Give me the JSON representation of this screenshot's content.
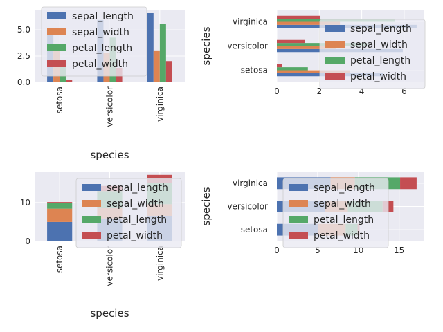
{
  "legend_labels": [
    "sepal_length",
    "sepal_width",
    "petal_length",
    "petal_width"
  ],
  "colors": {
    "series": [
      "#4c72b0",
      "#dd8452",
      "#55a868",
      "#c44e52"
    ],
    "axes_bg": "#eaeaf2",
    "grid": "#ffffff"
  },
  "chart_data": [
    {
      "type": "bar",
      "orientation": "vertical",
      "categories": [
        "setosa",
        "versicolor",
        "virginica"
      ],
      "series": [
        {
          "name": "sepal_length",
          "values": [
            5.006,
            5.936,
            6.588
          ]
        },
        {
          "name": "sepal_width",
          "values": [
            3.428,
            2.77,
            2.974
          ]
        },
        {
          "name": "petal_length",
          "values": [
            1.462,
            4.26,
            5.552
          ]
        },
        {
          "name": "petal_width",
          "values": [
            0.246,
            1.326,
            2.026
          ]
        }
      ],
      "xlabel": "species",
      "ylabel": "",
      "ylim": [
        0,
        6.917
      ],
      "yticks": [
        "0.0",
        "2.5",
        "5.0"
      ],
      "grid": true,
      "legend": "top-left"
    },
    {
      "type": "bar",
      "orientation": "horizontal",
      "categories": [
        "setosa",
        "versicolor",
        "virginica"
      ],
      "series": [
        {
          "name": "sepal_length",
          "values": [
            5.006,
            5.936,
            6.588
          ]
        },
        {
          "name": "sepal_width",
          "values": [
            3.428,
            2.77,
            2.974
          ]
        },
        {
          "name": "petal_length",
          "values": [
            1.462,
            4.26,
            5.552
          ]
        },
        {
          "name": "petal_width",
          "values": [
            0.246,
            1.326,
            2.026
          ]
        }
      ],
      "xlabel": "",
      "ylabel": "species",
      "xlim": [
        0,
        6.917
      ],
      "xticks": [
        "0",
        "2",
        "4",
        "6"
      ],
      "grid": true,
      "legend": "center-right"
    },
    {
      "type": "bar",
      "orientation": "vertical",
      "stacked": true,
      "categories": [
        "setosa",
        "versicolor",
        "virginica"
      ],
      "series": [
        {
          "name": "sepal_length",
          "values": [
            5.006,
            5.936,
            6.588
          ]
        },
        {
          "name": "sepal_width",
          "values": [
            3.428,
            2.77,
            2.974
          ]
        },
        {
          "name": "petal_length",
          "values": [
            1.462,
            4.26,
            5.552
          ]
        },
        {
          "name": "petal_width",
          "values": [
            0.246,
            1.326,
            2.026
          ]
        }
      ],
      "xlabel": "species",
      "ylabel": "",
      "ylim": [
        0,
        17.997
      ],
      "yticks": [
        "0",
        "10"
      ],
      "grid": true,
      "legend": "top-right"
    },
    {
      "type": "bar",
      "orientation": "horizontal",
      "stacked": true,
      "categories": [
        "setosa",
        "versicolor",
        "virginica"
      ],
      "series": [
        {
          "name": "sepal_length",
          "values": [
            5.006,
            5.936,
            6.588
          ]
        },
        {
          "name": "sepal_width",
          "values": [
            3.428,
            2.77,
            2.974
          ]
        },
        {
          "name": "petal_length",
          "values": [
            1.462,
            4.26,
            5.552
          ]
        },
        {
          "name": "petal_width",
          "values": [
            0.246,
            1.326,
            2.026
          ]
        }
      ],
      "xlabel": "",
      "ylabel": "species",
      "xlim": [
        0,
        17.997
      ],
      "xticks": [
        "0",
        "5",
        "10",
        "15"
      ],
      "grid": true,
      "legend": "bottom-center"
    }
  ]
}
